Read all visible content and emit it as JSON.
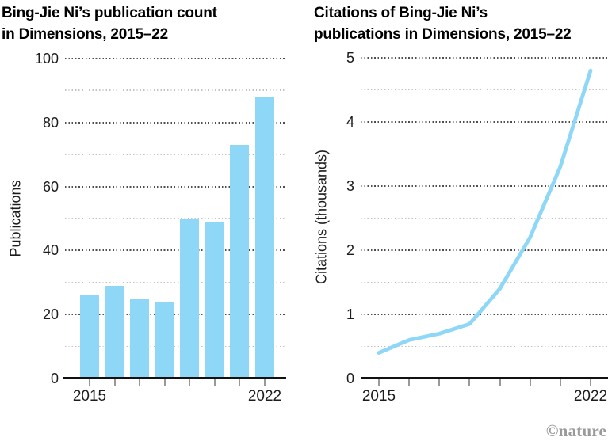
{
  "colors": {
    "accent": "#8ed7f7",
    "axis": "#111111",
    "grid_major": "#4d4d4d",
    "grid_minor": "#c3c3c3",
    "tick": "#999999",
    "text": "#1c1c1c",
    "credit": "#9a9a9a"
  },
  "footer": {
    "credit": "©nature"
  },
  "chart_data": [
    {
      "type": "bar",
      "title": "Bing-Jie Ni’s publication count in Dimensions, 2015–22",
      "title_lines": [
        "Bing-Jie Ni’s publication count",
        "in Dimensions, 2015–22"
      ],
      "ylabel": "Publications",
      "xlabel": "",
      "categories": [
        "2015",
        "2016",
        "2017",
        "2018",
        "2019",
        "2020",
        "2021",
        "2022"
      ],
      "values": [
        26,
        29,
        25,
        24,
        50,
        49,
        73,
        88
      ],
      "ylim": [
        0,
        100
      ],
      "yticks": [
        0,
        20,
        40,
        60,
        80,
        100
      ],
      "minor_gridlines": [
        10,
        30,
        50,
        70,
        90
      ],
      "xtick_labels": [
        {
          "index": 0,
          "label": "2015"
        },
        {
          "index": 7,
          "label": "2022"
        }
      ],
      "grid": "dotted-horizontal",
      "legend": "none"
    },
    {
      "type": "line",
      "title": "Citations of Bing-Jie Ni’s publications in Dimensions, 2015–22",
      "title_lines": [
        "Citations of Bing-Jie Ni’s",
        "publications in Dimensions, 2015–22"
      ],
      "ylabel": "Citations (thousands)",
      "xlabel": "",
      "categories": [
        "2015",
        "2016",
        "2017",
        "2018",
        "2019",
        "2020",
        "2021",
        "2022"
      ],
      "values": [
        0.4,
        0.6,
        0.7,
        0.85,
        1.4,
        2.2,
        3.3,
        4.8
      ],
      "ylim": [
        0,
        5
      ],
      "yticks": [
        0,
        1,
        2,
        3,
        4,
        5
      ],
      "minor_gridlines": [
        0.5,
        1.5,
        2.5,
        3.5,
        4.5
      ],
      "xtick_labels": [
        {
          "index": 0,
          "label": "2015"
        },
        {
          "index": 7,
          "label": "2022"
        }
      ],
      "grid": "dotted-horizontal",
      "legend": "none"
    }
  ]
}
